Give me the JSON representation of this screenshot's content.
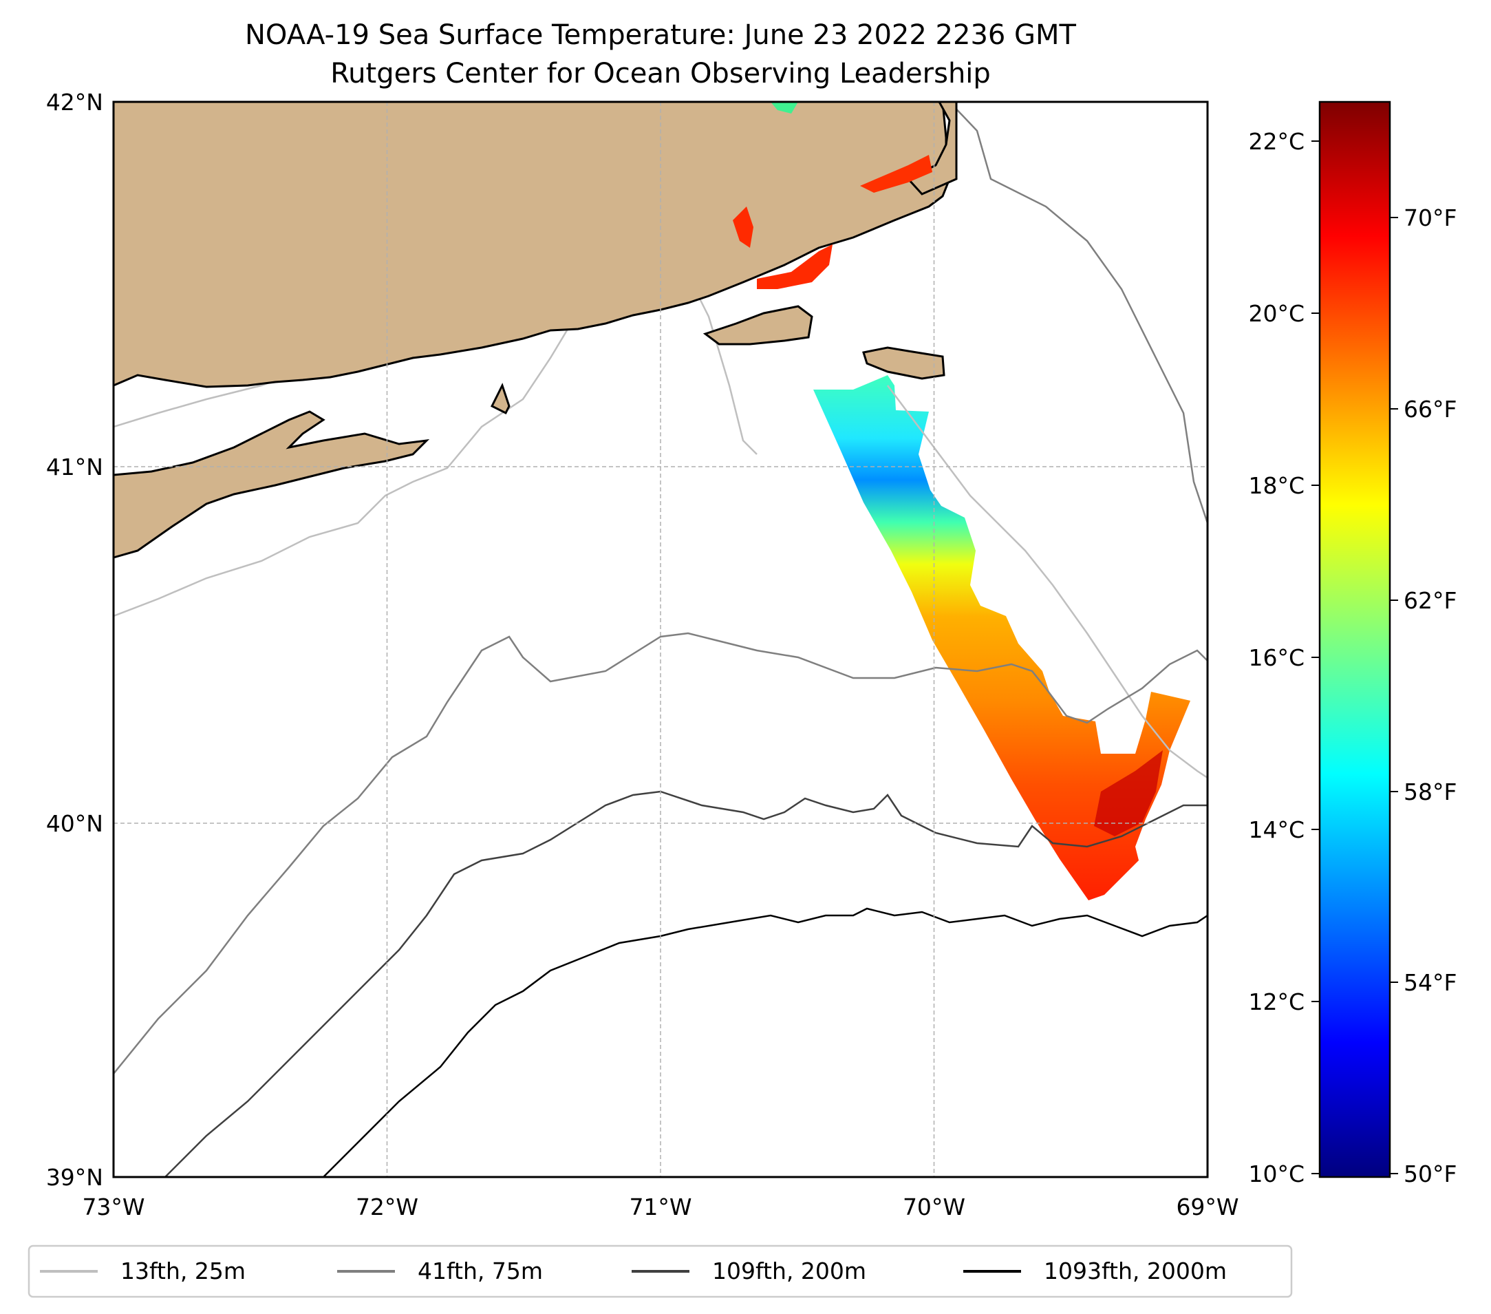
{
  "title": {
    "line1": "NOAA-19 Sea Surface Temperature: June 23 2022 2236 GMT",
    "line2": "Rutgers Center for Ocean Observing Leadership"
  },
  "map": {
    "extent": {
      "lon_min": -73,
      "lon_max": -69,
      "lat_min": 39,
      "lat_max": 42
    },
    "x_ticks": [
      "73°W",
      "72°W",
      "71°W",
      "70°W",
      "69°W"
    ],
    "y_ticks": [
      "42°N",
      "41°N",
      "40°N",
      "39°N"
    ],
    "gridlines": true,
    "land_color": "#d2b48c",
    "coastline_color": "#000000",
    "colormap": "jet"
  },
  "colorbar": {
    "range_c": [
      10,
      22.5
    ],
    "celsius_ticks": [
      "22°C",
      "20°C",
      "18°C",
      "16°C",
      "14°C",
      "12°C",
      "10°C"
    ],
    "fahrenheit_ticks": [
      "70°F",
      "66°F",
      "62°F",
      "58°F",
      "54°F",
      "50°F"
    ],
    "colors": [
      "#00007f",
      "#0000ff",
      "#007fff",
      "#00ffff",
      "#7fff7f",
      "#ffff00",
      "#ff7f00",
      "#ff0000",
      "#7f0000"
    ]
  },
  "legend": {
    "placement": "bottom",
    "items": [
      {
        "label": "13fth, 25m",
        "color": "#bfbfbf"
      },
      {
        "label": "41fth, 75m",
        "color": "#7f7f7f"
      },
      {
        "label": "109fth, 200m",
        "color": "#404040"
      },
      {
        "label": "1093fth, 2000m",
        "color": "#000000"
      }
    ]
  }
}
